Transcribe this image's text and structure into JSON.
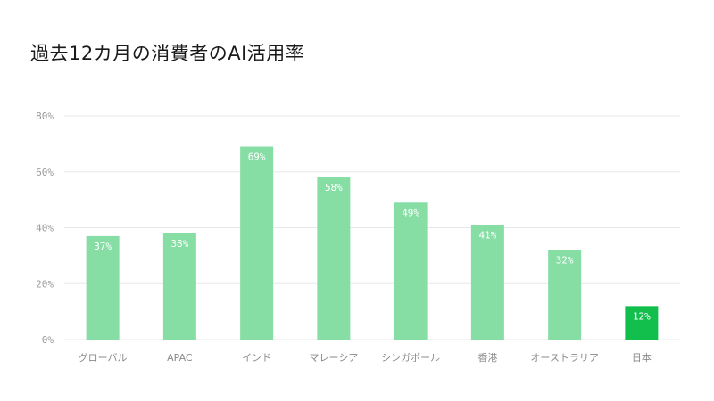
{
  "chart_data": {
    "type": "bar",
    "title": "過去12カ月の消費者のAI活用率",
    "xlabel": "",
    "ylabel": "",
    "ylim": [
      0,
      80
    ],
    "yticks": [
      "0%",
      "20%",
      "40%",
      "60%",
      "80%"
    ],
    "ytick_values": [
      0,
      20,
      40,
      60,
      80
    ],
    "categories": [
      "グローバル",
      "APAC",
      "インド",
      "マレーシア",
      "シンガポール",
      "香港",
      "オーストラリア",
      "日本"
    ],
    "values": [
      37,
      38,
      69,
      58,
      49,
      41,
      32,
      12
    ],
    "data_labels": [
      "37%",
      "38%",
      "69%",
      "58%",
      "49%",
      "41%",
      "32%",
      "12%"
    ],
    "grid": true,
    "legend": "none",
    "colors": {
      "bar": "#86dea5",
      "highlight": "#12bf4d"
    },
    "highlight_category": "日本"
  }
}
